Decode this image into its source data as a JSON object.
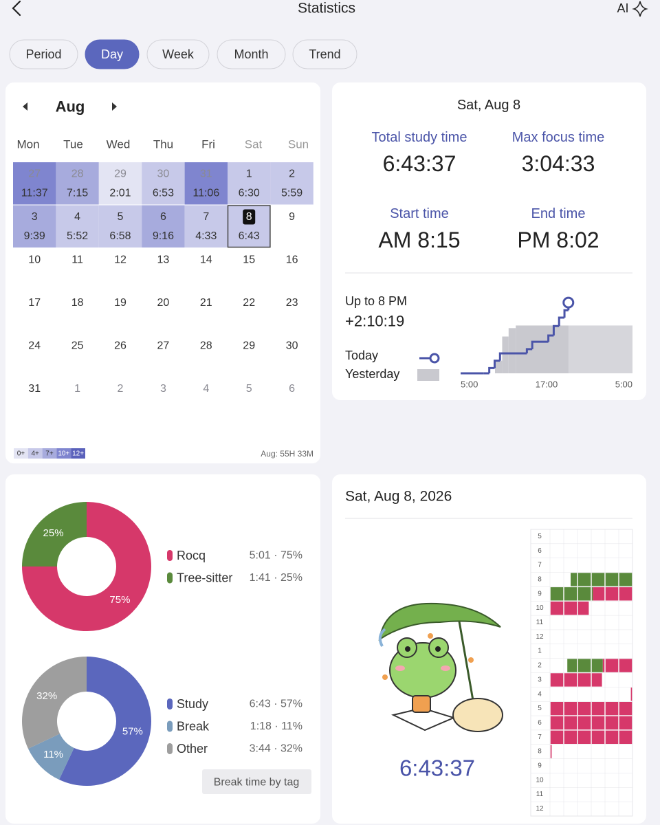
{
  "header": {
    "title": "Statistics",
    "ai": "AI"
  },
  "tabs": [
    {
      "label": "Period"
    },
    {
      "label": "Day",
      "selected": true
    },
    {
      "label": "Week"
    },
    {
      "label": "Month"
    },
    {
      "label": "Trend"
    }
  ],
  "calendar": {
    "month": "Aug",
    "weekdays": [
      "Mon",
      "Tue",
      "Wed",
      "Thu",
      "Fri",
      "Sat",
      "Sun"
    ],
    "cells": [
      {
        "day": 27,
        "time": "11:37",
        "outside": true
      },
      {
        "day": 28,
        "time": "7:15",
        "outside": true
      },
      {
        "day": 29,
        "time": "2:01",
        "outside": true
      },
      {
        "day": 30,
        "time": "6:53",
        "outside": true
      },
      {
        "day": 31,
        "time": "11:06",
        "outside": true
      },
      {
        "day": 1,
        "time": "6:30"
      },
      {
        "day": 2,
        "time": "5:59"
      },
      {
        "day": 3,
        "time": "9:39"
      },
      {
        "day": 4,
        "time": "5:52"
      },
      {
        "day": 5,
        "time": "6:58"
      },
      {
        "day": 6,
        "time": "9:16"
      },
      {
        "day": 7,
        "time": "4:33"
      },
      {
        "day": 8,
        "time": "6:43",
        "selected": true
      },
      {
        "day": 9
      },
      {
        "day": 10
      },
      {
        "day": 11
      },
      {
        "day": 12
      },
      {
        "day": 13
      },
      {
        "day": 14
      },
      {
        "day": 15
      },
      {
        "day": 16
      },
      {
        "day": 17
      },
      {
        "day": 18
      },
      {
        "day": 19
      },
      {
        "day": 20
      },
      {
        "day": 21
      },
      {
        "day": 22
      },
      {
        "day": 23
      },
      {
        "day": 24
      },
      {
        "day": 25
      },
      {
        "day": 26
      },
      {
        "day": 27
      },
      {
        "day": 28
      },
      {
        "day": 29
      },
      {
        "day": 30
      },
      {
        "day": 31
      },
      {
        "day": 1,
        "outside": true
      },
      {
        "day": 2,
        "outside": true
      },
      {
        "day": 3,
        "outside": true
      },
      {
        "day": 4,
        "outside": true
      },
      {
        "day": 5,
        "outside": true
      },
      {
        "day": 6,
        "outside": true
      }
    ],
    "legend": [
      {
        "value": 0,
        "label": "0+",
        "color": "#e3e4f3"
      },
      {
        "value": 4,
        "label": "4+",
        "color": "#c7c9e9"
      },
      {
        "value": 7,
        "label": "7+",
        "color": "#a7abdd"
      },
      {
        "value": 10,
        "label": "10+",
        "color": "#7f85cf"
      },
      {
        "value": 12,
        "label": "12+",
        "color": "#5a61bb"
      }
    ],
    "total": "Aug: 55H 33M"
  },
  "summary": {
    "date": "Sat, Aug 8",
    "stats": [
      {
        "label": "Total study time",
        "value": "6:43:37"
      },
      {
        "label": "Max focus time",
        "value": "3:04:33"
      },
      {
        "label": "Start time",
        "value": "AM 8:15"
      },
      {
        "label": "End time",
        "value": "PM 8:02"
      }
    ],
    "comparison": {
      "label": "Up to 8 PM",
      "value": "+2:10:19"
    },
    "chart": {
      "type": "step",
      "xlim": [
        5,
        29
      ],
      "ylim": [
        0,
        7
      ],
      "xticks": [
        {
          "value": 5,
          "label": "5:00"
        },
        {
          "value": 17,
          "label": "17:00"
        },
        {
          "value": 29,
          "label": "5:00"
        }
      ],
      "series": [
        {
          "name": "Today",
          "color": "#4a54a8",
          "x": [
            5,
            8.25,
            9,
            9.75,
            10.5,
            14.25,
            15,
            17.25,
            18,
            18.75,
            19.5,
            20.05
          ],
          "values": [
            0,
            0,
            0.5,
            1.2,
            1.9,
            2.3,
            3.0,
            3.6,
            4.5,
            5.3,
            6.0,
            6.73
          ]
        },
        {
          "name": "Yesterday",
          "color": "#c9c9cf",
          "x": [
            5,
            9.8,
            10.8,
            11.7,
            12.7,
            29
          ],
          "values": [
            0,
            1.2,
            3.5,
            4.3,
            4.55,
            4.55
          ]
        }
      ]
    }
  },
  "tag_pie": {
    "type": "pie",
    "categories": [
      "Rocq",
      "Tree-sitter"
    ],
    "values": [
      75,
      25
    ],
    "value_labels": [
      "75%",
      "25%"
    ],
    "details": [
      "5:01 · 75%",
      "1:41 · 25%"
    ],
    "colors": [
      "#d6386a",
      "#5a8a3c"
    ]
  },
  "type_pie": {
    "type": "pie",
    "categories": [
      "Study",
      "Break",
      "Other"
    ],
    "values": [
      57,
      11,
      32
    ],
    "value_labels": [
      "57%",
      "11%",
      "32%"
    ],
    "details": [
      "6:43 · 57%",
      "1:18 · 11%",
      "3:44 · 32%"
    ],
    "colors": [
      "#5b67bd",
      "#7a9cbc",
      "#9e9e9e"
    ],
    "button": "Break time by tag"
  },
  "timeline": {
    "date": "Sat, Aug 8, 2026",
    "total": "6:43:37",
    "hours": [
      "5",
      "6",
      "7",
      "8",
      "9",
      "10",
      "11",
      "12",
      "1",
      "2",
      "3",
      "4",
      "5",
      "6",
      "7",
      "8",
      "9",
      "10",
      "11",
      "12"
    ],
    "sessions": [
      {
        "start": 8.25,
        "end": 9.52,
        "tag": 1
      },
      {
        "start": 9.52,
        "end": 10.47,
        "tag": 0
      },
      {
        "start": 14.21,
        "end": 14.64,
        "tag": 1
      },
      {
        "start": 14.64,
        "end": 15.63,
        "tag": 0
      },
      {
        "start": 16.98,
        "end": 20.02,
        "tag": 0
      }
    ]
  }
}
